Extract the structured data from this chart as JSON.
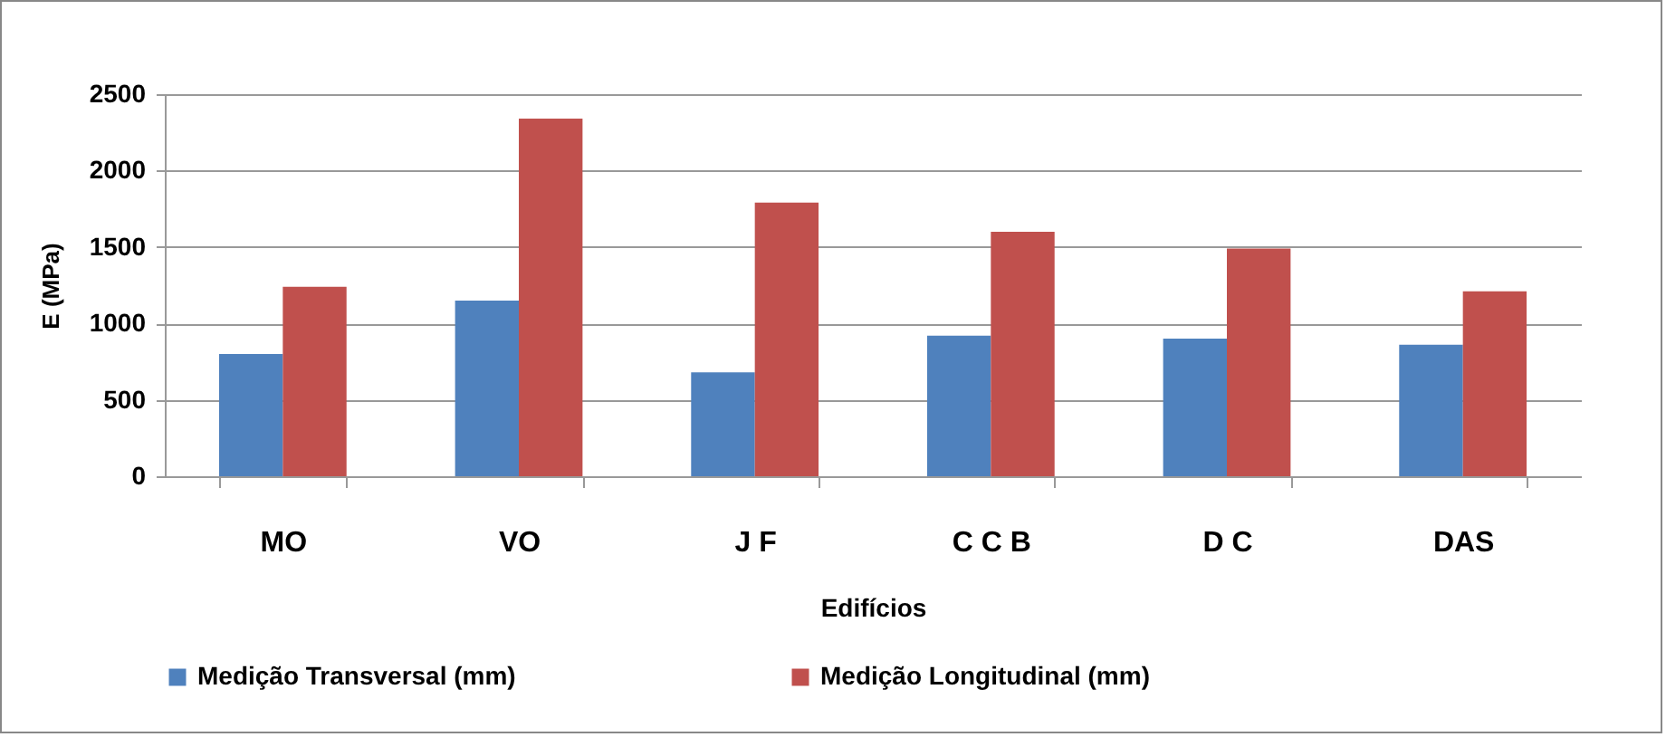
{
  "chart_data": {
    "type": "bar",
    "xlabel": "Edifícios",
    "ylabel": "E (MPa)",
    "categories": [
      "MO",
      "VO",
      "J F",
      "C C B",
      "D C",
      "DAS"
    ],
    "series": [
      {
        "name": "Medição Transversal (mm)",
        "color": "#4f81bd",
        "values": [
          800,
          1150,
          680,
          920,
          900,
          860
        ]
      },
      {
        "name": "Medição Longitudinal (mm)",
        "color": "#c0504d",
        "values": [
          1240,
          2340,
          1790,
          1600,
          1490,
          1210
        ]
      }
    ],
    "ylim": [
      0,
      2500
    ],
    "yticks": [
      0,
      500,
      1000,
      1500,
      2000,
      2500
    ],
    "grid": "y",
    "legend": "bottom"
  }
}
